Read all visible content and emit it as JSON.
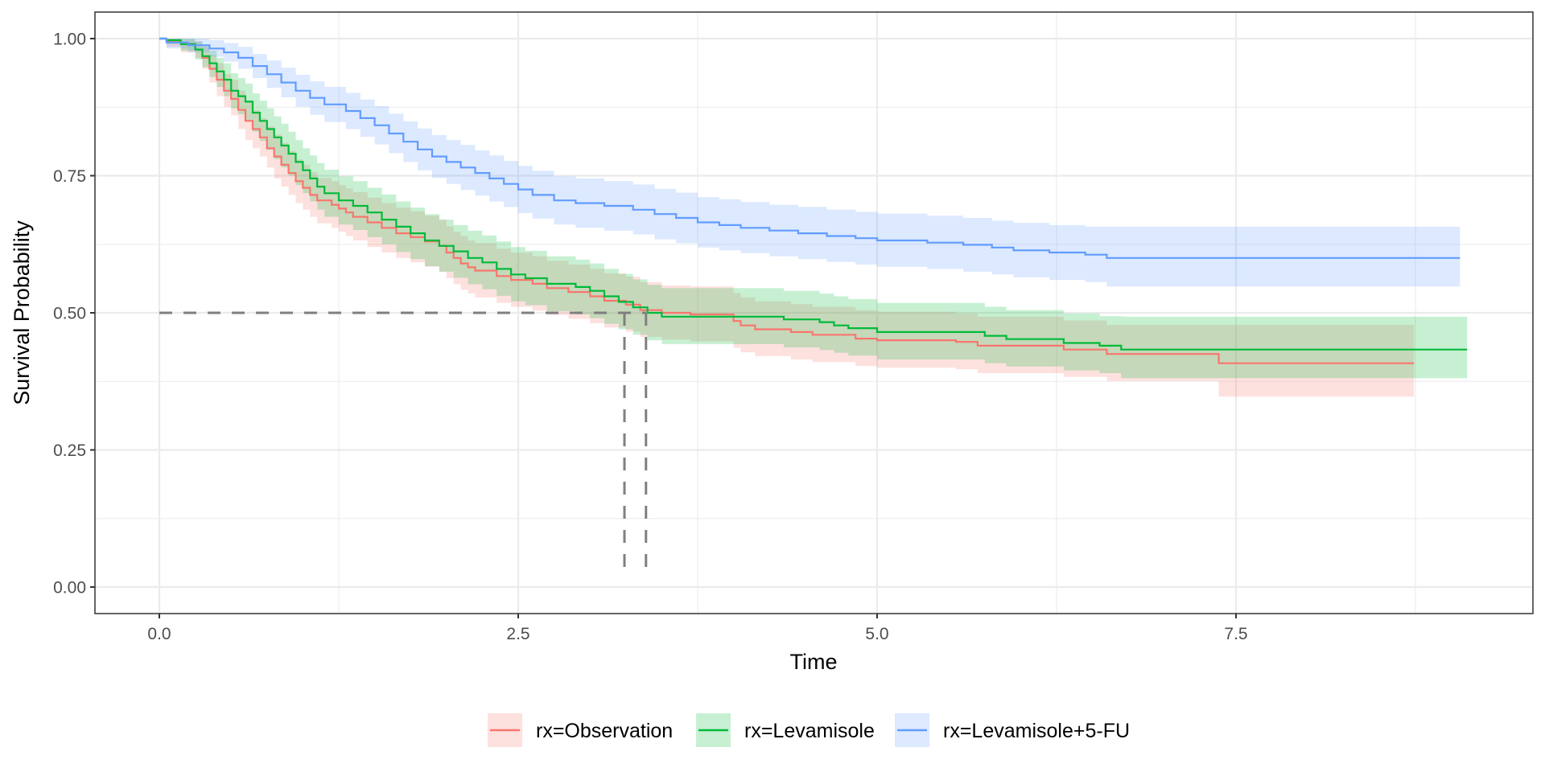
{
  "chart_data": {
    "type": "line",
    "subtype": "kaplan-meier survival curve with confidence bands",
    "title": "",
    "xlabel": "Time",
    "ylabel": "Survival Probability",
    "xlim": [
      -0.45,
      9.57
    ],
    "ylim": [
      -0.045,
      1.04
    ],
    "x_ticks": [
      0.0,
      2.5,
      5.0,
      7.5
    ],
    "x_tick_labels": [
      "0.0",
      "2.5",
      "5.0",
      "7.5"
    ],
    "y_ticks": [
      0.0,
      0.25,
      0.5,
      0.75,
      1.0
    ],
    "y_tick_labels": [
      "0.00",
      "0.25",
      "0.50",
      "0.75",
      "1.00"
    ],
    "grid": true,
    "legend_position": "bottom",
    "colors": {
      "observation": "#F8766D",
      "levamisole": "#00BA38",
      "levamisole_5fu": "#619CFF",
      "median_line": "#7f7f7f"
    },
    "median_survival": {
      "y": 0.5,
      "times": [
        3.24,
        3.39
      ]
    },
    "series": [
      {
        "name": "rx=Observation",
        "key": "observation",
        "end_time": 8.74,
        "steps": [
          [
            0.0,
            1.0,
            1.0,
            1.0
          ],
          [
            0.05,
            0.995,
            0.985,
            1.0
          ],
          [
            0.15,
            0.99,
            0.975,
            0.998
          ],
          [
            0.25,
            0.98,
            0.965,
            0.995
          ],
          [
            0.3,
            0.965,
            0.945,
            0.985
          ],
          [
            0.35,
            0.945,
            0.92,
            0.97
          ],
          [
            0.4,
            0.925,
            0.895,
            0.955
          ],
          [
            0.45,
            0.905,
            0.875,
            0.935
          ],
          [
            0.5,
            0.89,
            0.86,
            0.925
          ],
          [
            0.55,
            0.87,
            0.835,
            0.905
          ],
          [
            0.6,
            0.85,
            0.815,
            0.885
          ],
          [
            0.65,
            0.835,
            0.8,
            0.87
          ],
          [
            0.7,
            0.82,
            0.785,
            0.855
          ],
          [
            0.75,
            0.8,
            0.765,
            0.84
          ],
          [
            0.8,
            0.785,
            0.745,
            0.825
          ],
          [
            0.85,
            0.77,
            0.73,
            0.81
          ],
          [
            0.9,
            0.755,
            0.715,
            0.795
          ],
          [
            0.95,
            0.74,
            0.7,
            0.78
          ],
          [
            1.0,
            0.728,
            0.688,
            0.77
          ],
          [
            1.05,
            0.715,
            0.675,
            0.757
          ],
          [
            1.1,
            0.705,
            0.663,
            0.746
          ],
          [
            1.2,
            0.697,
            0.655,
            0.74
          ],
          [
            1.25,
            0.69,
            0.648,
            0.733
          ],
          [
            1.3,
            0.683,
            0.64,
            0.727
          ],
          [
            1.35,
            0.675,
            0.632,
            0.72
          ],
          [
            1.45,
            0.665,
            0.62,
            0.71
          ],
          [
            1.55,
            0.655,
            0.61,
            0.7
          ],
          [
            1.65,
            0.645,
            0.6,
            0.692
          ],
          [
            1.75,
            0.638,
            0.592,
            0.685
          ],
          [
            1.85,
            0.63,
            0.584,
            0.677
          ],
          [
            1.95,
            0.622,
            0.575,
            0.67
          ],
          [
            2.0,
            0.61,
            0.563,
            0.658
          ],
          [
            2.05,
            0.6,
            0.552,
            0.648
          ],
          [
            2.1,
            0.59,
            0.542,
            0.64
          ],
          [
            2.15,
            0.583,
            0.535,
            0.632
          ],
          [
            2.2,
            0.577,
            0.528,
            0.627
          ],
          [
            2.35,
            0.567,
            0.518,
            0.617
          ],
          [
            2.45,
            0.56,
            0.511,
            0.61
          ],
          [
            2.6,
            0.553,
            0.504,
            0.603
          ],
          [
            2.7,
            0.545,
            0.496,
            0.595
          ],
          [
            2.85,
            0.538,
            0.489,
            0.588
          ],
          [
            3.0,
            0.53,
            0.481,
            0.58
          ],
          [
            3.1,
            0.522,
            0.473,
            0.572
          ],
          [
            3.25,
            0.515,
            0.466,
            0.566
          ],
          [
            3.35,
            0.505,
            0.456,
            0.556
          ],
          [
            3.5,
            0.5,
            0.451,
            0.55
          ],
          [
            3.7,
            0.497,
            0.448,
            0.548
          ],
          [
            4.0,
            0.485,
            0.436,
            0.536
          ],
          [
            4.05,
            0.477,
            0.428,
            0.528
          ],
          [
            4.15,
            0.47,
            0.421,
            0.521
          ],
          [
            4.4,
            0.465,
            0.415,
            0.516
          ],
          [
            4.55,
            0.46,
            0.41,
            0.511
          ],
          [
            4.85,
            0.453,
            0.403,
            0.505
          ],
          [
            5.0,
            0.45,
            0.4,
            0.502
          ],
          [
            5.55,
            0.447,
            0.397,
            0.499
          ],
          [
            5.7,
            0.44,
            0.39,
            0.493
          ],
          [
            6.3,
            0.433,
            0.383,
            0.486
          ],
          [
            6.6,
            0.425,
            0.376,
            0.478
          ],
          [
            7.38,
            0.408,
            0.347,
            0.478
          ]
        ]
      },
      {
        "name": "rx=Levamisole",
        "key": "levamisole",
        "end_time": 9.11,
        "steps": [
          [
            0.0,
            1.0,
            1.0,
            1.0
          ],
          [
            0.05,
            0.997,
            0.99,
            1.0
          ],
          [
            0.15,
            0.99,
            0.978,
            1.0
          ],
          [
            0.25,
            0.98,
            0.962,
            0.995
          ],
          [
            0.3,
            0.968,
            0.948,
            0.988
          ],
          [
            0.35,
            0.955,
            0.93,
            0.978
          ],
          [
            0.4,
            0.94,
            0.912,
            0.965
          ],
          [
            0.45,
            0.925,
            0.895,
            0.955
          ],
          [
            0.5,
            0.905,
            0.873,
            0.937
          ],
          [
            0.55,
            0.895,
            0.862,
            0.928
          ],
          [
            0.6,
            0.885,
            0.85,
            0.918
          ],
          [
            0.65,
            0.865,
            0.83,
            0.9
          ],
          [
            0.7,
            0.85,
            0.813,
            0.887
          ],
          [
            0.75,
            0.835,
            0.797,
            0.873
          ],
          [
            0.8,
            0.82,
            0.78,
            0.858
          ],
          [
            0.85,
            0.805,
            0.765,
            0.845
          ],
          [
            0.9,
            0.79,
            0.75,
            0.83
          ],
          [
            0.95,
            0.775,
            0.733,
            0.815
          ],
          [
            1.0,
            0.76,
            0.718,
            0.8
          ],
          [
            1.05,
            0.745,
            0.703,
            0.787
          ],
          [
            1.1,
            0.73,
            0.688,
            0.773
          ],
          [
            1.15,
            0.718,
            0.675,
            0.761
          ],
          [
            1.25,
            0.705,
            0.661,
            0.749
          ],
          [
            1.35,
            0.695,
            0.651,
            0.74
          ],
          [
            1.45,
            0.683,
            0.638,
            0.728
          ],
          [
            1.55,
            0.67,
            0.625,
            0.716
          ],
          [
            1.65,
            0.657,
            0.611,
            0.703
          ],
          [
            1.75,
            0.645,
            0.598,
            0.692
          ],
          [
            1.85,
            0.632,
            0.585,
            0.68
          ],
          [
            1.95,
            0.622,
            0.575,
            0.67
          ],
          [
            2.05,
            0.612,
            0.564,
            0.66
          ],
          [
            2.15,
            0.6,
            0.552,
            0.65
          ],
          [
            2.25,
            0.592,
            0.543,
            0.641
          ],
          [
            2.35,
            0.58,
            0.531,
            0.63
          ],
          [
            2.45,
            0.57,
            0.521,
            0.62
          ],
          [
            2.55,
            0.563,
            0.514,
            0.613
          ],
          [
            2.7,
            0.553,
            0.503,
            0.603
          ],
          [
            2.9,
            0.547,
            0.497,
            0.597
          ],
          [
            3.0,
            0.54,
            0.49,
            0.59
          ],
          [
            3.1,
            0.53,
            0.48,
            0.58
          ],
          [
            3.2,
            0.52,
            0.47,
            0.571
          ],
          [
            3.3,
            0.51,
            0.46,
            0.561
          ],
          [
            3.4,
            0.5,
            0.45,
            0.551
          ],
          [
            3.5,
            0.493,
            0.443,
            0.545
          ],
          [
            4.35,
            0.488,
            0.437,
            0.54
          ],
          [
            4.6,
            0.483,
            0.432,
            0.535
          ],
          [
            4.7,
            0.477,
            0.427,
            0.53
          ],
          [
            4.8,
            0.472,
            0.422,
            0.525
          ],
          [
            5.0,
            0.465,
            0.415,
            0.518
          ],
          [
            5.75,
            0.458,
            0.408,
            0.511
          ],
          [
            5.9,
            0.452,
            0.402,
            0.505
          ],
          [
            6.3,
            0.445,
            0.395,
            0.499
          ],
          [
            6.55,
            0.44,
            0.39,
            0.494
          ],
          [
            6.7,
            0.433,
            0.381,
            0.493
          ]
        ]
      },
      {
        "name": "rx=Levamisole+5-FU",
        "key": "levamisole_5fu",
        "end_time": 9.06,
        "steps": [
          [
            0.0,
            1.0,
            1.0,
            1.0
          ],
          [
            0.05,
            0.993,
            0.982,
            1.0
          ],
          [
            0.2,
            0.988,
            0.975,
            1.0
          ],
          [
            0.35,
            0.982,
            0.967,
            0.997
          ],
          [
            0.45,
            0.975,
            0.958,
            0.992
          ],
          [
            0.55,
            0.965,
            0.945,
            0.985
          ],
          [
            0.65,
            0.95,
            0.928,
            0.972
          ],
          [
            0.75,
            0.935,
            0.91,
            0.96
          ],
          [
            0.85,
            0.92,
            0.893,
            0.947
          ],
          [
            0.95,
            0.905,
            0.876,
            0.934
          ],
          [
            1.05,
            0.892,
            0.861,
            0.922
          ],
          [
            1.15,
            0.88,
            0.848,
            0.912
          ],
          [
            1.3,
            0.868,
            0.835,
            0.901
          ],
          [
            1.4,
            0.855,
            0.821,
            0.889
          ],
          [
            1.5,
            0.842,
            0.807,
            0.877
          ],
          [
            1.6,
            0.827,
            0.791,
            0.863
          ],
          [
            1.7,
            0.812,
            0.775,
            0.849
          ],
          [
            1.8,
            0.798,
            0.76,
            0.836
          ],
          [
            1.9,
            0.785,
            0.746,
            0.824
          ],
          [
            2.0,
            0.775,
            0.735,
            0.815
          ],
          [
            2.1,
            0.765,
            0.724,
            0.806
          ],
          [
            2.2,
            0.755,
            0.714,
            0.796
          ],
          [
            2.3,
            0.745,
            0.703,
            0.787
          ],
          [
            2.4,
            0.735,
            0.693,
            0.777
          ],
          [
            2.5,
            0.725,
            0.682,
            0.768
          ],
          [
            2.6,
            0.715,
            0.672,
            0.759
          ],
          [
            2.75,
            0.705,
            0.661,
            0.749
          ],
          [
            2.9,
            0.7,
            0.655,
            0.745
          ],
          [
            3.1,
            0.695,
            0.65,
            0.74
          ],
          [
            3.3,
            0.688,
            0.643,
            0.734
          ],
          [
            3.45,
            0.68,
            0.634,
            0.726
          ],
          [
            3.6,
            0.673,
            0.627,
            0.719
          ],
          [
            3.75,
            0.665,
            0.619,
            0.711
          ],
          [
            3.9,
            0.66,
            0.614,
            0.707
          ],
          [
            4.05,
            0.655,
            0.609,
            0.702
          ],
          [
            4.25,
            0.65,
            0.603,
            0.697
          ],
          [
            4.45,
            0.645,
            0.598,
            0.693
          ],
          [
            4.65,
            0.64,
            0.593,
            0.688
          ],
          [
            4.85,
            0.636,
            0.588,
            0.684
          ],
          [
            5.0,
            0.632,
            0.584,
            0.681
          ],
          [
            5.35,
            0.628,
            0.58,
            0.677
          ],
          [
            5.6,
            0.624,
            0.575,
            0.673
          ],
          [
            5.8,
            0.619,
            0.57,
            0.668
          ],
          [
            5.95,
            0.614,
            0.565,
            0.664
          ],
          [
            6.2,
            0.61,
            0.56,
            0.66
          ],
          [
            6.45,
            0.606,
            0.556,
            0.657
          ],
          [
            6.6,
            0.6,
            0.548,
            0.657
          ]
        ]
      }
    ]
  }
}
